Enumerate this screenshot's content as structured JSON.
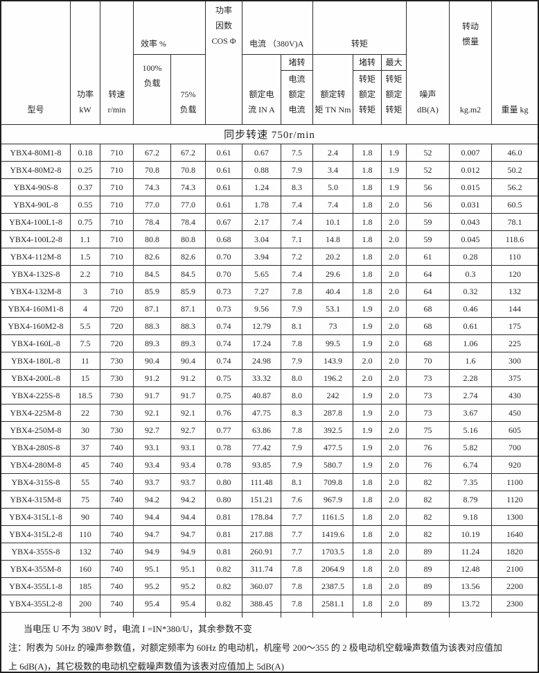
{
  "header": {
    "model": "型号",
    "power": {
      "l1": "功率",
      "l2": "kW"
    },
    "speed": {
      "l1": "转速",
      "l2": "r/min"
    },
    "efficiency": {
      "group": "效率 %",
      "load100": {
        "l1": "100%",
        "l2": "负载"
      },
      "load75": {
        "l1": "75%",
        "l2": "负载"
      }
    },
    "power_factor": {
      "l1": "功率",
      "l2": "因数",
      "l3": "COS Φ"
    },
    "current": {
      "group": "电流 （380V)A",
      "rated": {
        "l1": "额定电",
        "l2": "流 IN A"
      },
      "locked_ratio": {
        "num": "堵转",
        "d1": "电流",
        "d2": "额定",
        "d3": "电流"
      }
    },
    "torque": {
      "group": "转矩",
      "rated": {
        "l1": "额定转",
        "l2": "矩 TN Nm"
      },
      "locked_ratio": {
        "num": "堵转",
        "d1": "转矩",
        "d2": "额定",
        "d3": "转矩"
      },
      "max_ratio": {
        "num": "最大",
        "d1": "转矩",
        "d2": "额定",
        "d3": "转矩"
      }
    },
    "noise": {
      "l1": "噪声",
      "l2": "dB(A)"
    },
    "inertia": {
      "l1": "转动",
      "l2": "惯量",
      "unit": "kg.m2"
    },
    "weight": "重量 kg"
  },
  "section_title": "同步转速 750r/min",
  "rows": [
    [
      "YBX4-80M1-8",
      "0.18",
      "710",
      "67.2",
      "67.2",
      "0.61",
      "0.67",
      "7.5",
      "2.4",
      "1.8",
      "1.9",
      "52",
      "0.007",
      "46.0"
    ],
    [
      "YBX4-80M2-8",
      "0.25",
      "710",
      "70.8",
      "70.8",
      "0.61",
      "0.88",
      "7.9",
      "3.4",
      "1.8",
      "1.9",
      "52",
      "0.012",
      "50.2"
    ],
    [
      "YBX4-90S-8",
      "0.37",
      "710",
      "74.3",
      "74.3",
      "0.61",
      "1.24",
      "8.3",
      "5.0",
      "1.8",
      "1.9",
      "56",
      "0.015",
      "56.2"
    ],
    [
      "YBX4-90L-8",
      "0.55",
      "710",
      "77.0",
      "77.0",
      "0.61",
      "1.78",
      "7.4",
      "7.4",
      "1.8",
      "2.0",
      "56",
      "0.031",
      "60.5"
    ],
    [
      "YBX4-100L1-8",
      "0.75",
      "710",
      "78.4",
      "78.4",
      "0.67",
      "2.17",
      "7.4",
      "10.1",
      "1.8",
      "2.0",
      "59",
      "0.043",
      "78.1"
    ],
    [
      "YBX4-100L2-8",
      "1.1",
      "710",
      "80.8",
      "80.8",
      "0.68",
      "3.04",
      "7.1",
      "14.8",
      "1.8",
      "2.0",
      "59",
      "0.045",
      "118.6"
    ],
    [
      "YBX4-112M-8",
      "1.5",
      "710",
      "82.6",
      "82.6",
      "0.70",
      "3.94",
      "7.2",
      "20.2",
      "1.8",
      "2.0",
      "61",
      "0.28",
      "110"
    ],
    [
      "YBX4-132S-8",
      "2.2",
      "710",
      "84.5",
      "84.5",
      "0.70",
      "5.65",
      "7.4",
      "29.6",
      "1.8",
      "2.0",
      "64",
      "0.3",
      "120"
    ],
    [
      "YBX4-132M-8",
      "3",
      "710",
      "85.9",
      "85.9",
      "0.73",
      "7.27",
      "7.8",
      "40.4",
      "1.8",
      "2.0",
      "64",
      "0.32",
      "132"
    ],
    [
      "YBX4-160M1-8",
      "4",
      "720",
      "87.1",
      "87.1",
      "0.73",
      "9.56",
      "7.9",
      "53.1",
      "1.9",
      "2.0",
      "68",
      "0.46",
      "144"
    ],
    [
      "YBX4-160M2-8",
      "5.5",
      "720",
      "88.3",
      "88.3",
      "0.74",
      "12.79",
      "8.1",
      "73",
      "1.9",
      "2.0",
      "68",
      "0.61",
      "175"
    ],
    [
      "YBX4-160L-8",
      "7.5",
      "720",
      "89.3",
      "89.3",
      "0.74",
      "17.24",
      "7.8",
      "99.5",
      "1.9",
      "2.0",
      "68",
      "1.06",
      "225"
    ],
    [
      "YBX4-180L-8",
      "11",
      "730",
      "90.4",
      "90.4",
      "0.74",
      "24.98",
      "7.9",
      "143.9",
      "2.0",
      "2.0",
      "70",
      "1.6",
      "300"
    ],
    [
      "YBX4-200L-8",
      "15",
      "730",
      "91.2",
      "91.2",
      "0.75",
      "33.32",
      "8.0",
      "196.2",
      "2.0",
      "2.0",
      "73",
      "2.28",
      "375"
    ],
    [
      "YBX4-225S-8",
      "18.5",
      "730",
      "91.7",
      "91.7",
      "0.75",
      "40.87",
      "8.0",
      "242",
      "1.9",
      "2.0",
      "73",
      "2.74",
      "430"
    ],
    [
      "YBX4-225M-8",
      "22",
      "730",
      "92.1",
      "92.1",
      "0.76",
      "47.75",
      "8.3",
      "287.8",
      "1.9",
      "2.0",
      "73",
      "3.67",
      "450"
    ],
    [
      "YBX4-250M-8",
      "30",
      "730",
      "92.7",
      "92.7",
      "0.77",
      "63.86",
      "7.8",
      "392.5",
      "1.9",
      "2.0",
      "75",
      "5.16",
      "605"
    ],
    [
      "YBX4-280S-8",
      "37",
      "740",
      "93.1",
      "93.1",
      "0.78",
      "77.42",
      "7.9",
      "477.5",
      "1.9",
      "2.0",
      "76",
      "5.82",
      "700"
    ],
    [
      "YBX4-280M-8",
      "45",
      "740",
      "93.4",
      "93.4",
      "0.78",
      "93.85",
      "7.9",
      "580.7",
      "1.9",
      "2.0",
      "76",
      "6.74",
      "920"
    ],
    [
      "YBX4-315S-8",
      "55",
      "740",
      "93.7",
      "93.7",
      "0.80",
      "111.48",
      "8.1",
      "709.8",
      "1.8",
      "2.0",
      "82",
      "7.35",
      "1100"
    ],
    [
      "YBX4-315M-8",
      "75",
      "740",
      "94.2",
      "94.2",
      "0.80",
      "151.21",
      "7.6",
      "967.9",
      "1.8",
      "2.0",
      "82",
      "8.79",
      "1120"
    ],
    [
      "YBX4-315L1-8",
      "90",
      "740",
      "94.4",
      "94.4",
      "0.81",
      "178.84",
      "7.7",
      "1161.5",
      "1.8",
      "2.0",
      "82",
      "9.18",
      "1300"
    ],
    [
      "YBX4-315L2-8",
      "110",
      "740",
      "94.7",
      "94.7",
      "0.81",
      "217.88",
      "7.7",
      "1419.6",
      "1.8",
      "2.0",
      "82",
      "10.19",
      "1640"
    ],
    [
      "YBX4-355S-8",
      "132",
      "740",
      "94.9",
      "94.9",
      "0.81",
      "260.91",
      "7.7",
      "1703.5",
      "1.8",
      "2.0",
      "89",
      "11.24",
      "1820"
    ],
    [
      "YBX4-355M-8",
      "160",
      "740",
      "95.1",
      "95.1",
      "0.82",
      "311.74",
      "7.8",
      "2064.9",
      "1.8",
      "2.0",
      "89",
      "12.48",
      "2100"
    ],
    [
      "YBX4-355L1-8",
      "185",
      "740",
      "95.2",
      "95.2",
      "0.82",
      "360.07",
      "7.8",
      "2387.5",
      "1.8",
      "2.0",
      "89",
      "13.56",
      "2200"
    ],
    [
      "YBX4-355L2-8",
      "200",
      "740",
      "95.4",
      "95.4",
      "0.82",
      "388.45",
      "7.8",
      "2581.1",
      "1.8",
      "2.0",
      "89",
      "13.72",
      "2300"
    ]
  ],
  "notes": [
    "当电压 U 不为 380V 时，电流 I =IN*380/U，其余参数不变",
    "注：附表为 50Hz 的噪声参数值，对额定频率为 60Hz 的电动机，机座号 200～355 的 2 极电动机空载噪声数值为该表对应值加",
    "上 6dB(A)，其它极数的电动机空载噪声数值为该表对应值加上 5dB(A)"
  ]
}
